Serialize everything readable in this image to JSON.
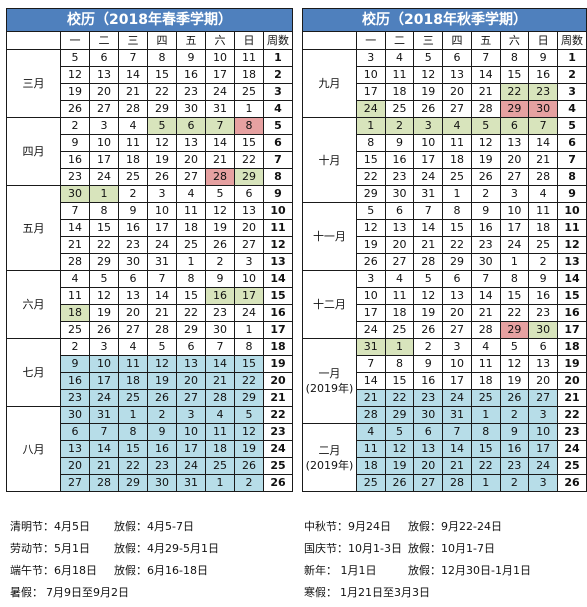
{
  "spring": {
    "title": "校历（2018年春季学期）",
    "headers": [
      "一",
      "二",
      "三",
      "四",
      "五",
      "六",
      "日",
      "周数"
    ],
    "months": [
      {
        "name": "三月",
        "rows": [
          {
            "d": [
              "5",
              "6",
              "7",
              "8",
              "9",
              "10",
              "11"
            ],
            "w": "1"
          },
          {
            "d": [
              "12",
              "13",
              "14",
              "15",
              "16",
              "17",
              "18"
            ],
            "w": "2"
          },
          {
            "d": [
              "19",
              "20",
              "21",
              "22",
              "23",
              "24",
              "25"
            ],
            "w": "3"
          },
          {
            "d": [
              "26",
              "27",
              "28",
              "29",
              "30",
              "31",
              "1"
            ],
            "w": "4"
          }
        ]
      },
      {
        "name": "四月",
        "rows": [
          {
            "d": [
              "2",
              "3",
              "4",
              "5",
              "6",
              "7",
              "8"
            ],
            "w": "5",
            "c": [
              "",
              "",
              "",
              "g",
              "g",
              "g",
              "r"
            ]
          },
          {
            "d": [
              "9",
              "10",
              "11",
              "12",
              "13",
              "14",
              "15"
            ],
            "w": "6"
          },
          {
            "d": [
              "16",
              "17",
              "18",
              "19",
              "20",
              "21",
              "22"
            ],
            "w": "7"
          },
          {
            "d": [
              "23",
              "24",
              "25",
              "26",
              "27",
              "28",
              "29"
            ],
            "w": "8",
            "c": [
              "",
              "",
              "",
              "",
              "",
              "r",
              "g"
            ]
          }
        ]
      },
      {
        "name": "五月",
        "rows": [
          {
            "d": [
              "30",
              "1",
              "2",
              "3",
              "4",
              "5",
              "6"
            ],
            "w": "9",
            "c": [
              "g",
              "g",
              "",
              "",
              "",
              "",
              ""
            ]
          },
          {
            "d": [
              "7",
              "8",
              "9",
              "10",
              "11",
              "12",
              "13"
            ],
            "w": "10"
          },
          {
            "d": [
              "14",
              "15",
              "16",
              "17",
              "18",
              "19",
              "20"
            ],
            "w": "11"
          },
          {
            "d": [
              "21",
              "22",
              "23",
              "24",
              "25",
              "26",
              "27"
            ],
            "w": "12"
          },
          {
            "d": [
              "28",
              "29",
              "30",
              "31",
              "1",
              "2",
              "3"
            ],
            "w": "13"
          }
        ]
      },
      {
        "name": "六月",
        "rows": [
          {
            "d": [
              "4",
              "5",
              "6",
              "7",
              "8",
              "9",
              "10"
            ],
            "w": "14"
          },
          {
            "d": [
              "11",
              "12",
              "13",
              "14",
              "15",
              "16",
              "17"
            ],
            "w": "15",
            "c": [
              "",
              "",
              "",
              "",
              "",
              "g",
              "g"
            ]
          },
          {
            "d": [
              "18",
              "19",
              "20",
              "21",
              "22",
              "23",
              "24"
            ],
            "w": "16",
            "c": [
              "g",
              "",
              "",
              "",
              "",
              "",
              ""
            ]
          },
          {
            "d": [
              "25",
              "26",
              "27",
              "28",
              "29",
              "30",
              "1"
            ],
            "w": "17"
          }
        ]
      },
      {
        "name": "七月",
        "rows": [
          {
            "d": [
              "2",
              "3",
              "4",
              "5",
              "6",
              "7",
              "8"
            ],
            "w": "18"
          },
          {
            "d": [
              "9",
              "10",
              "11",
              "12",
              "13",
              "14",
              "15"
            ],
            "w": "19",
            "c": [
              "b",
              "b",
              "b",
              "b",
              "b",
              "b",
              "b"
            ]
          },
          {
            "d": [
              "16",
              "17",
              "18",
              "19",
              "20",
              "21",
              "22"
            ],
            "w": "20",
            "c": [
              "b",
              "b",
              "b",
              "b",
              "b",
              "b",
              "b"
            ]
          },
          {
            "d": [
              "23",
              "24",
              "25",
              "26",
              "27",
              "28",
              "29"
            ],
            "w": "21",
            "c": [
              "b",
              "b",
              "b",
              "b",
              "b",
              "b",
              "b"
            ]
          }
        ]
      },
      {
        "name": "八月",
        "rows": [
          {
            "d": [
              "30",
              "31",
              "1",
              "2",
              "3",
              "4",
              "5"
            ],
            "w": "22",
            "c": [
              "b",
              "b",
              "b",
              "b",
              "b",
              "b",
              "b"
            ]
          },
          {
            "d": [
              "6",
              "7",
              "8",
              "9",
              "10",
              "11",
              "12"
            ],
            "w": "23",
            "c": [
              "b",
              "b",
              "b",
              "b",
              "b",
              "b",
              "b"
            ]
          },
          {
            "d": [
              "13",
              "14",
              "15",
              "16",
              "17",
              "18",
              "19"
            ],
            "w": "24",
            "c": [
              "b",
              "b",
              "b",
              "b",
              "b",
              "b",
              "b"
            ]
          },
          {
            "d": [
              "20",
              "21",
              "22",
              "23",
              "24",
              "25",
              "26"
            ],
            "w": "25",
            "c": [
              "b",
              "b",
              "b",
              "b",
              "b",
              "b",
              "b"
            ]
          },
          {
            "d": [
              "27",
              "28",
              "29",
              "30",
              "31",
              "1",
              "2"
            ],
            "w": "26",
            "c": [
              "b",
              "b",
              "b",
              "b",
              "b",
              "b",
              "b"
            ]
          }
        ]
      }
    ]
  },
  "autumn": {
    "title": "校历（2018年秋季学期）",
    "headers": [
      "一",
      "二",
      "三",
      "四",
      "五",
      "六",
      "日",
      "周数"
    ],
    "months": [
      {
        "name": "九月",
        "rows": [
          {
            "d": [
              "3",
              "4",
              "5",
              "6",
              "7",
              "8",
              "9"
            ],
            "w": "1"
          },
          {
            "d": [
              "10",
              "11",
              "12",
              "13",
              "14",
              "15",
              "16"
            ],
            "w": "2"
          },
          {
            "d": [
              "17",
              "18",
              "19",
              "20",
              "21",
              "22",
              "23"
            ],
            "w": "3",
            "c": [
              "",
              "",
              "",
              "",
              "",
              "g",
              "g"
            ]
          },
          {
            "d": [
              "24",
              "25",
              "26",
              "27",
              "28",
              "29",
              "30"
            ],
            "w": "4",
            "c": [
              "g",
              "",
              "",
              "",
              "",
              "r",
              "r"
            ]
          }
        ]
      },
      {
        "name": "十月",
        "rows": [
          {
            "d": [
              "1",
              "2",
              "3",
              "4",
              "5",
              "6",
              "7"
            ],
            "w": "5",
            "c": [
              "g",
              "g",
              "g",
              "g",
              "g",
              "g",
              "g"
            ]
          },
          {
            "d": [
              "8",
              "9",
              "10",
              "11",
              "12",
              "13",
              "14"
            ],
            "w": "6"
          },
          {
            "d": [
              "15",
              "16",
              "17",
              "18",
              "19",
              "20",
              "21"
            ],
            "w": "7"
          },
          {
            "d": [
              "22",
              "23",
              "24",
              "25",
              "26",
              "27",
              "28"
            ],
            "w": "8"
          },
          {
            "d": [
              "29",
              "30",
              "31",
              "1",
              "2",
              "3",
              "4"
            ],
            "w": "9"
          }
        ]
      },
      {
        "name": "十一月",
        "rows": [
          {
            "d": [
              "5",
              "6",
              "7",
              "8",
              "9",
              "10",
              "11"
            ],
            "w": "10"
          },
          {
            "d": [
              "12",
              "13",
              "14",
              "15",
              "16",
              "17",
              "18"
            ],
            "w": "11"
          },
          {
            "d": [
              "19",
              "20",
              "21",
              "22",
              "23",
              "24",
              "25"
            ],
            "w": "12"
          },
          {
            "d": [
              "26",
              "27",
              "28",
              "29",
              "30",
              "1",
              "2"
            ],
            "w": "13"
          }
        ]
      },
      {
        "name": "十二月",
        "rows": [
          {
            "d": [
              "3",
              "4",
              "5",
              "6",
              "7",
              "8",
              "9"
            ],
            "w": "14"
          },
          {
            "d": [
              "10",
              "11",
              "12",
              "13",
              "14",
              "15",
              "16"
            ],
            "w": "15"
          },
          {
            "d": [
              "17",
              "18",
              "19",
              "20",
              "21",
              "22",
              "23"
            ],
            "w": "16"
          },
          {
            "d": [
              "24",
              "25",
              "26",
              "27",
              "28",
              "29",
              "30"
            ],
            "w": "17",
            "c": [
              "",
              "",
              "",
              "",
              "",
              "r",
              "g"
            ]
          }
        ]
      },
      {
        "name": "一月",
        "sub": "(2019年)",
        "rows": [
          {
            "d": [
              "31",
              "1",
              "2",
              "3",
              "4",
              "5",
              "6"
            ],
            "w": "18",
            "c": [
              "g",
              "g",
              "",
              "",
              "",
              "",
              ""
            ]
          },
          {
            "d": [
              "7",
              "8",
              "9",
              "10",
              "11",
              "12",
              "13"
            ],
            "w": "19"
          },
          {
            "d": [
              "14",
              "15",
              "16",
              "17",
              "18",
              "19",
              "20"
            ],
            "w": "20"
          },
          {
            "d": [
              "21",
              "22",
              "23",
              "24",
              "25",
              "26",
              "27"
            ],
            "w": "21",
            "c": [
              "b",
              "b",
              "b",
              "b",
              "b",
              "b",
              "b"
            ]
          },
          {
            "d": [
              "28",
              "29",
              "30",
              "31",
              "1",
              "2",
              "3"
            ],
            "w": "22",
            "c": [
              "b",
              "b",
              "b",
              "b",
              "b",
              "b",
              "b"
            ]
          }
        ]
      },
      {
        "name": "二月",
        "sub": "(2019年)",
        "rows": [
          {
            "d": [
              "4",
              "5",
              "6",
              "7",
              "8",
              "9",
              "10"
            ],
            "w": "23",
            "c": [
              "b",
              "b",
              "b",
              "b",
              "b",
              "b",
              "b"
            ]
          },
          {
            "d": [
              "11",
              "12",
              "13",
              "14",
              "15",
              "16",
              "17"
            ],
            "w": "24",
            "c": [
              "b",
              "b",
              "b",
              "b",
              "b",
              "b",
              "b"
            ]
          },
          {
            "d": [
              "18",
              "19",
              "20",
              "21",
              "22",
              "23",
              "24"
            ],
            "w": "25",
            "c": [
              "b",
              "b",
              "b",
              "b",
              "b",
              "b",
              "b"
            ]
          },
          {
            "d": [
              "25",
              "26",
              "27",
              "28",
              "1",
              "2",
              "3"
            ],
            "w": "26",
            "c": [
              "b",
              "b",
              "b",
              "b",
              "b",
              "b",
              "b"
            ]
          }
        ]
      }
    ]
  },
  "spring_notes": [
    {
      "label": "清明节：4月5日",
      "value": "放假：4月5-7日"
    },
    {
      "label": "劳动节：5月1日",
      "value": "放假：4月29-5月1日"
    },
    {
      "label": "端午节：6月18日",
      "value": "放假：6月16-18日"
    },
    {
      "label": "暑假：",
      "value": "7月9日至9月2日"
    }
  ],
  "autumn_notes": [
    {
      "label": "中秋节：9月24日",
      "value": "放假：9月22-24日"
    },
    {
      "label": "国庆节：10月1-3日",
      "value": "放假：10月1-7日"
    },
    {
      "label": "新年：  1月1日",
      "value": "放假：12月30日-1月1日"
    },
    {
      "label": "寒假：",
      "value": "1月21日至3月3日"
    }
  ],
  "colors": {
    "holiday": "#d8e4bc",
    "festival": "#e6a1a1",
    "vacation": "#b7dde8",
    "header": "#4f80bd"
  }
}
